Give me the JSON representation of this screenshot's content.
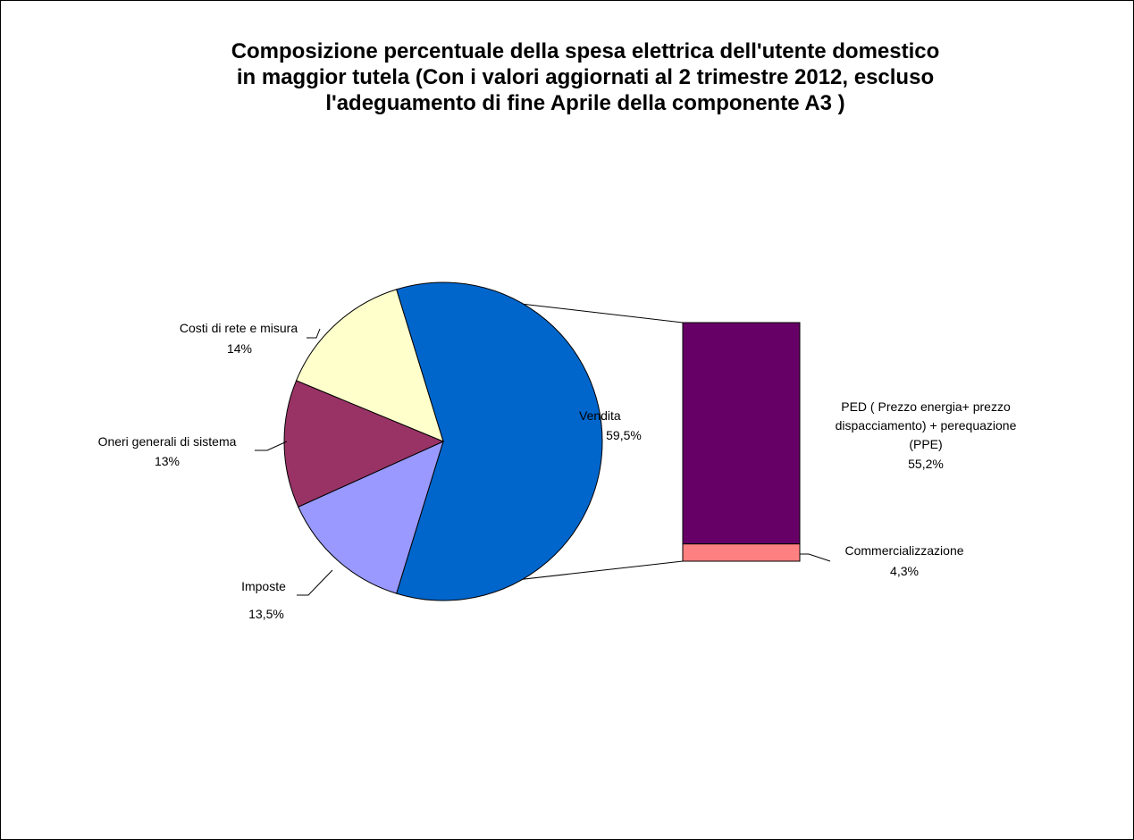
{
  "chart_data": {
    "type": "bar-of-pie",
    "title_lines": [
      "Composizione percentuale della spesa elettrica dell'utente domestico",
      "in maggior tutela (Con i valori aggiornati al 2 trimestre 2012, escluso",
      "l'adeguamento di fine Aprile della componente A3 )"
    ],
    "pie": [
      {
        "name": "Vendita",
        "value_label": "59,5%",
        "value": 59.5,
        "color": "#0066CC"
      },
      {
        "name": "Imposte",
        "value_label": "13,5%",
        "value": 13.5,
        "color": "#9999FF"
      },
      {
        "name": "Oneri generali di sistema",
        "value_label": "13%",
        "value": 13,
        "color": "#993366"
      },
      {
        "name": "Costi di rete e misura",
        "value_label": "14%",
        "value": 14,
        "color": "#FFFFCC"
      }
    ],
    "bar": {
      "breakdown_of": "Vendita",
      "segments": [
        {
          "name_lines": [
            "PED ( Prezzo energia+ prezzo",
            "dispacciamento) + perequazione",
            "(PPE)"
          ],
          "value_label": "55,2%",
          "value": 55.2,
          "color": "#660066"
        },
        {
          "name_lines": [
            "Commercializzazione"
          ],
          "value_label": "4,3%",
          "value": 4.3,
          "color": "#FF8080"
        }
      ]
    }
  }
}
